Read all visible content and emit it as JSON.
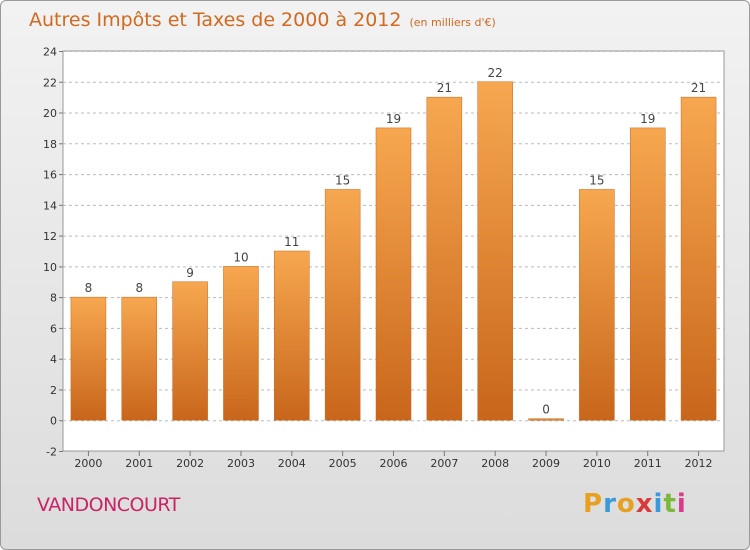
{
  "header": {
    "title": "Autres Impôts et Taxes de 2000 à 2012",
    "subtitle": "(en milliers d'€)"
  },
  "footer": {
    "commune": "VANDONCOURT",
    "logo": {
      "letters": [
        "P",
        "r",
        "o",
        "x",
        "i",
        "t",
        "i"
      ],
      "colors": [
        "#e8a020",
        "#3a9ad9",
        "#e8a020",
        "#d93a3a",
        "#3a9ad9",
        "#7ab93a",
        "#d93a8a"
      ]
    }
  },
  "chart_data": {
    "type": "bar",
    "categories": [
      "2000",
      "2001",
      "2002",
      "2003",
      "2004",
      "2005",
      "2006",
      "2007",
      "2008",
      "2009",
      "2010",
      "2011",
      "2012"
    ],
    "values": [
      8,
      8,
      9,
      10,
      11,
      15,
      19,
      21,
      22,
      0,
      15,
      19,
      21
    ],
    "data_labels": [
      "8",
      "8",
      "9",
      "10",
      "11",
      "15",
      "19",
      "21",
      "22",
      "0",
      "15",
      "19",
      "21"
    ],
    "ylim": [
      -2,
      24
    ],
    "yticks": [
      -2,
      0,
      2,
      4,
      6,
      8,
      10,
      12,
      14,
      16,
      18,
      20,
      22,
      24
    ],
    "ytick_labels": [
      "-2",
      "0",
      "2",
      "4",
      "6",
      "8",
      "10",
      "12",
      "14",
      "16",
      "18",
      "20",
      "22",
      "24"
    ],
    "grid": true,
    "colors": {
      "bar_light": "#f7a750",
      "bar_dark": "#c8661b",
      "grid": "#bbbbbb",
      "plot_bg": "#ffffff"
    }
  }
}
